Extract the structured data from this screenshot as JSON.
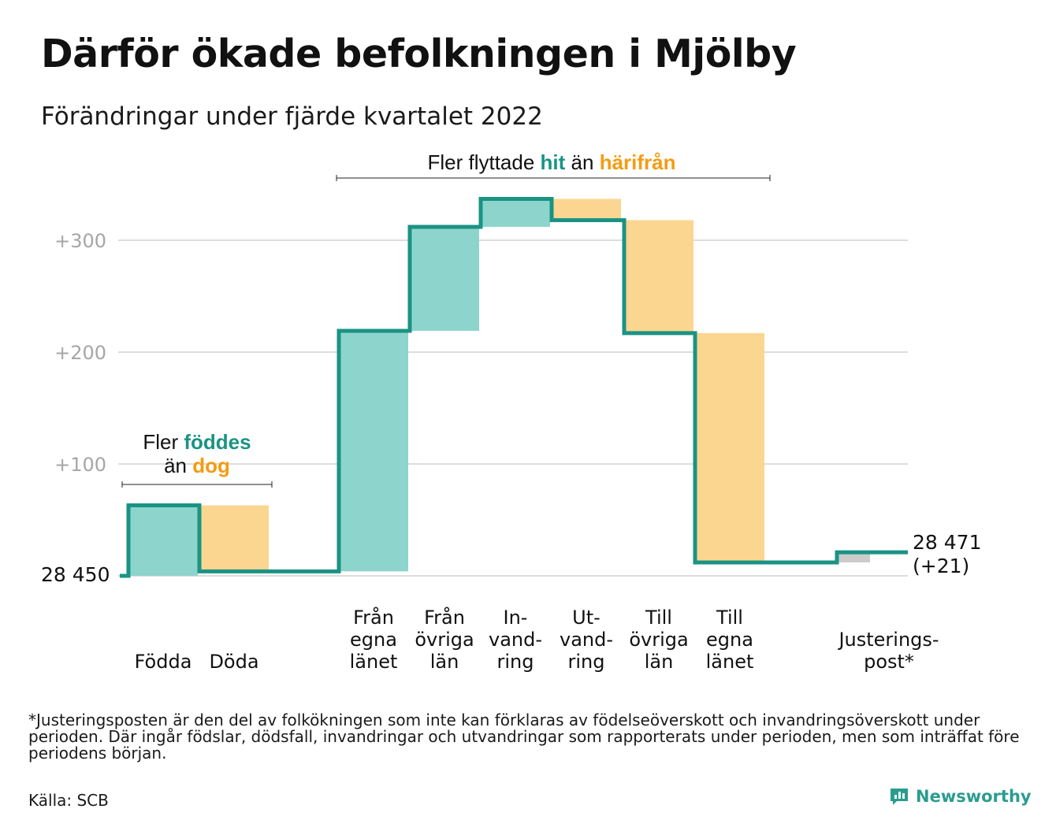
{
  "title": "Därför ökade befolkningen i Mjölby",
  "subtitle": "Förändringar under fjärde kvartalet 2022",
  "footnote": "*Justeringsposten är den del av folkökningen som inte kan förklaras av födelseöverskott och invandringsöverskott under perioden. Där ingår födslar, dödsfall, invandringar och utvandringar som rapporterats under perioden, men som inträffat före periodens början.",
  "source": "Källa: SCB",
  "brand": "Newsworthy",
  "colors": {
    "increase": "#8dd5cc",
    "decrease": "#fbd690",
    "adjustment": "#cccccc",
    "line": "#1a9384",
    "hit": "#1a9384",
    "harifran": "#f39c12",
    "grid": "#dddddd",
    "ticklabel": "#a6a6a6"
  },
  "annotations": {
    "births": {
      "l1_prefix": "Fler ",
      "l1_highlight": "föddes",
      "l2_prefix": "än ",
      "l2_highlight": "dog"
    },
    "migration": {
      "prefix": "Fler flyttade ",
      "hit": "hit",
      "middle": " än ",
      "harifran": "härifrån"
    }
  },
  "chart_data": {
    "type": "waterfall",
    "base_value": 28450,
    "base_label": "28 450",
    "end_label": "28 471",
    "end_change": "(+21)",
    "ylim": [
      0,
      340
    ],
    "yticks": [
      0,
      100,
      200,
      300
    ],
    "ytick_labels": [
      "",
      "+100",
      "+200",
      "+300"
    ],
    "steps": [
      {
        "label": [
          "Födda"
        ],
        "value": 63,
        "kind": "increase"
      },
      {
        "label": [
          "Döda"
        ],
        "value": -59,
        "kind": "decrease"
      },
      {
        "label": [
          "Från",
          "egna",
          "länet"
        ],
        "value": 215,
        "kind": "increase"
      },
      {
        "label": [
          "Från",
          "övriga",
          "län"
        ],
        "value": 93,
        "kind": "increase"
      },
      {
        "label": [
          "In-",
          "vand-",
          "ring"
        ],
        "value": 25,
        "kind": "increase"
      },
      {
        "label": [
          "Ut-",
          "vand-",
          "ring"
        ],
        "value": -19,
        "kind": "decrease"
      },
      {
        "label": [
          "Till",
          "övriga",
          "län"
        ],
        "value": -101,
        "kind": "decrease"
      },
      {
        "label": [
          "Till",
          "egna",
          "länet"
        ],
        "value": -205,
        "kind": "decrease"
      },
      {
        "label": [
          "Justerings-",
          "post*"
        ],
        "value": 9,
        "kind": "adjustment"
      }
    ],
    "grid": true
  }
}
